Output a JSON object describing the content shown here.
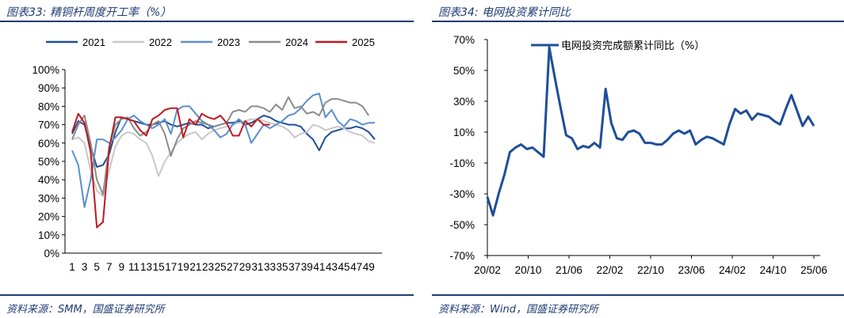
{
  "left_panel": {
    "title": "图表33:  精铜杆周度开工率（%）",
    "source": "资料来源：SMM，国盛证券研究所"
  },
  "right_panel": {
    "title": "图表34:  电网投资累计同比",
    "source": "资料来源：Wind，国盛证券研究所"
  },
  "chart_data": [
    {
      "type": "line",
      "title": "精铜杆周度开工率（%）",
      "x": [
        1,
        2,
        3,
        4,
        5,
        6,
        7,
        8,
        9,
        10,
        11,
        12,
        13,
        14,
        15,
        16,
        17,
        18,
        19,
        20,
        21,
        22,
        23,
        24,
        25,
        26,
        27,
        28,
        29,
        30,
        31,
        32,
        33,
        34,
        35,
        36,
        37,
        38,
        39,
        40,
        41,
        42,
        43,
        44,
        45,
        46,
        47,
        48,
        49,
        50
      ],
      "x_tick_labels": [
        "1",
        "3",
        "5",
        "7",
        "9",
        "11",
        "13",
        "15",
        "17",
        "19",
        "21",
        "23",
        "25",
        "27",
        "29",
        "31",
        "33",
        "35",
        "37",
        "39",
        "41",
        "43",
        "45",
        "47",
        "49"
      ],
      "ylim": [
        0,
        100
      ],
      "y_ticks": [
        "0%",
        "10%",
        "20%",
        "30%",
        "40%",
        "50%",
        "60%",
        "70%",
        "80%",
        "90%",
        "100%"
      ],
      "legend_position": "top",
      "series": [
        {
          "name": "2021",
          "color": "#1f4e99",
          "values": [
            65,
            72,
            70,
            58,
            47,
            48,
            54,
            66,
            74,
            73,
            72,
            71,
            70,
            70,
            71,
            72,
            70,
            69,
            70,
            71,
            70,
            70,
            68,
            69,
            70,
            71,
            71,
            72,
            70,
            71,
            73,
            75,
            74,
            72,
            71,
            70,
            70,
            69,
            65,
            62,
            56,
            63,
            66,
            67,
            68,
            68,
            69,
            68,
            66,
            62
          ]
        },
        {
          "name": "2022",
          "color": "#c8c8c8",
          "values": [
            62,
            63,
            60,
            45,
            34,
            31,
            45,
            58,
            64,
            66,
            65,
            62,
            60,
            53,
            42,
            50,
            55,
            60,
            63,
            65,
            66,
            62,
            65,
            67,
            68,
            69,
            70,
            71,
            72,
            73,
            73,
            72,
            71,
            70,
            69,
            67,
            63,
            65,
            66,
            70,
            69,
            67,
            68,
            69,
            68,
            66,
            65,
            64,
            61,
            60
          ]
        },
        {
          "name": "2023",
          "color": "#5a8ed0",
          "values": [
            56,
            48,
            25,
            40,
            62,
            62,
            60,
            63,
            67,
            73,
            75,
            72,
            70,
            68,
            70,
            73,
            65,
            78,
            80,
            80,
            76,
            72,
            70,
            67,
            63,
            65,
            70,
            73,
            70,
            60,
            65,
            70,
            68,
            70,
            72,
            75,
            76,
            79,
            83,
            86,
            87,
            74,
            78,
            72,
            69,
            73,
            72,
            70,
            71,
            71
          ]
        },
        {
          "name": "2024",
          "color": "#8c8c8c",
          "values": [
            62,
            70,
            75,
            60,
            40,
            32,
            58,
            70,
            73,
            74,
            68,
            64,
            66,
            70,
            72,
            65,
            53,
            62,
            68,
            70,
            72,
            71,
            70,
            69,
            70,
            71,
            77,
            78,
            77,
            80,
            80,
            79,
            77,
            81,
            78,
            85,
            79,
            80,
            76,
            77,
            75,
            82,
            84,
            84,
            83,
            82,
            82,
            80,
            75,
            null
          ]
        },
        {
          "name": "2025",
          "color": "#c0181e",
          "values": [
            66,
            76,
            71,
            55,
            14,
            17,
            57,
            74,
            74,
            73,
            72,
            67,
            64,
            73,
            75,
            78,
            79,
            79,
            63,
            73,
            70,
            76,
            74,
            73,
            75,
            71,
            64,
            64,
            72,
            69,
            73,
            70,
            70,
            null,
            null,
            null,
            null,
            null,
            null,
            null,
            null,
            null,
            null,
            null,
            null,
            null,
            null,
            null,
            null,
            null
          ]
        }
      ]
    },
    {
      "type": "line",
      "title": "电网投资累计同比",
      "x_tick_labels": [
        "20/02",
        "20/10",
        "21/06",
        "22/02",
        "22/10",
        "23/06",
        "24/02",
        "24/10",
        "25/06"
      ],
      "ylim": [
        -70,
        70
      ],
      "y_ticks": [
        "-70%",
        "-50%",
        "-30%",
        "-10%",
        "10%",
        "30%",
        "50%",
        "70%"
      ],
      "legend_position": "top",
      "series": [
        {
          "name": "电网投资完成额累计同比（%）",
          "color": "#1f4e99",
          "values": [
            -32,
            -44,
            -30,
            -18,
            -3,
            0,
            2,
            -1,
            0,
            -3,
            -6,
            65,
            45,
            26,
            8,
            6,
            -1,
            1,
            0,
            3,
            0,
            38,
            16,
            6,
            5,
            10,
            11,
            9,
            3,
            3,
            2,
            2,
            5,
            9,
            11,
            9,
            11,
            2,
            5,
            7,
            6,
            4,
            2,
            15,
            25,
            22,
            24,
            18,
            22,
            21,
            20,
            17,
            15,
            25,
            34,
            24,
            14,
            20,
            14
          ]
        }
      ]
    }
  ]
}
